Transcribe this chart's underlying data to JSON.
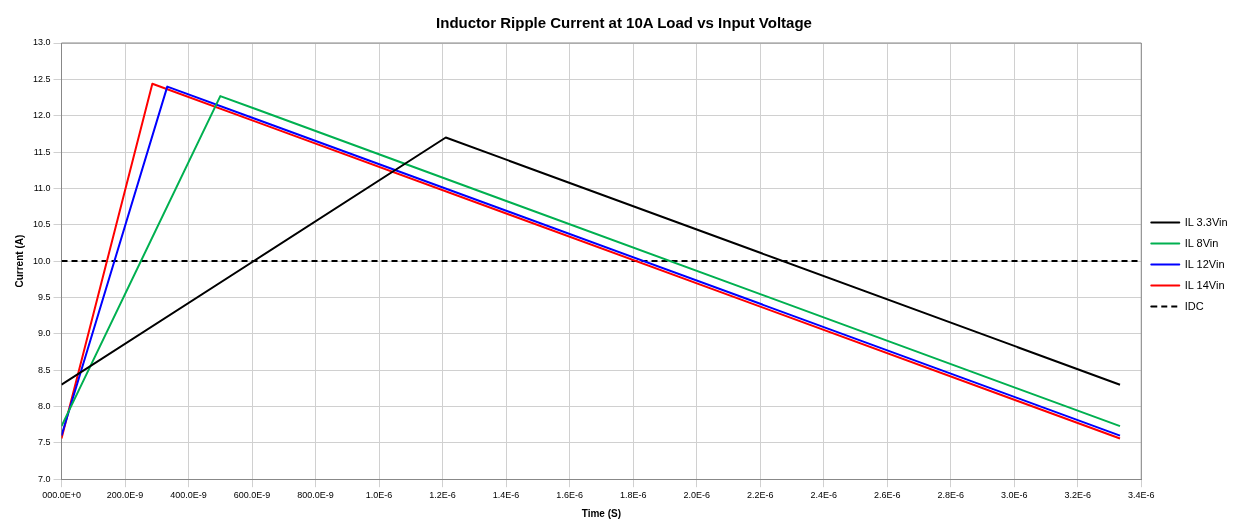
{
  "chart_data": {
    "type": "line",
    "title": "Inductor Ripple Current at 10A Load vs Input Voltage",
    "xlabel": "Time (S)",
    "ylabel": "Current (A)",
    "series": [
      {
        "name": "IL 3.3Vin",
        "color": "#000000",
        "x": [
          0,
          1.21e-06,
          3.333e-06
        ],
        "values": [
          8.3,
          11.7,
          8.3
        ]
      },
      {
        "name": "IL 8Vin",
        "color": "#00b050",
        "x": [
          0,
          5e-07,
          3.333e-06
        ],
        "values": [
          7.73,
          12.27,
          7.73
        ]
      },
      {
        "name": "IL 12Vin",
        "color": "#0000ff",
        "x": [
          0,
          3.33e-07,
          3.333e-06
        ],
        "values": [
          7.6,
          12.4,
          7.6
        ]
      },
      {
        "name": "IL 14Vin",
        "color": "#ff0000",
        "x": [
          0,
          2.86e-07,
          3.333e-06
        ],
        "values": [
          7.56,
          12.44,
          7.56
        ]
      },
      {
        "name": "IDC",
        "color": "#000000",
        "line_style": "dashed",
        "x": [
          0,
          3.4e-06
        ],
        "values": [
          10,
          10
        ]
      }
    ],
    "xlim": [
      0,
      3.4e-06
    ],
    "xticks": [
      {
        "value": 0,
        "label": "000.0E+0"
      },
      {
        "value": 2e-07,
        "label": "200.0E-9"
      },
      {
        "value": 4e-07,
        "label": "400.0E-9"
      },
      {
        "value": 6e-07,
        "label": "600.0E-9"
      },
      {
        "value": 8e-07,
        "label": "800.0E-9"
      },
      {
        "value": 1e-06,
        "label": "1.0E-6"
      },
      {
        "value": 1.2e-06,
        "label": "1.2E-6"
      },
      {
        "value": 1.4e-06,
        "label": "1.4E-6"
      },
      {
        "value": 1.6e-06,
        "label": "1.6E-6"
      },
      {
        "value": 1.8e-06,
        "label": "1.8E-6"
      },
      {
        "value": 2e-06,
        "label": "2.0E-6"
      },
      {
        "value": 2.2e-06,
        "label": "2.2E-6"
      },
      {
        "value": 2.4e-06,
        "label": "2.4E-6"
      },
      {
        "value": 2.6e-06,
        "label": "2.6E-6"
      },
      {
        "value": 2.8e-06,
        "label": "2.8E-6"
      },
      {
        "value": 3e-06,
        "label": "3.0E-6"
      },
      {
        "value": 3.2e-06,
        "label": "3.2E-6"
      },
      {
        "value": 3.4e-06,
        "label": "3.4E-6"
      }
    ],
    "ylim": [
      7,
      13
    ],
    "yticks": [
      {
        "value": 7,
        "label": "7.0"
      },
      {
        "value": 7.5,
        "label": "7.5"
      },
      {
        "value": 8,
        "label": "8.0"
      },
      {
        "value": 8.5,
        "label": "8.5"
      },
      {
        "value": 9,
        "label": "9.0"
      },
      {
        "value": 9.5,
        "label": "9.5"
      },
      {
        "value": 10,
        "label": "10.0"
      },
      {
        "value": 10.5,
        "label": "10.5"
      },
      {
        "value": 11,
        "label": "11.0"
      },
      {
        "value": 11.5,
        "label": "11.5"
      },
      {
        "value": 12,
        "label": "12.0"
      },
      {
        "value": 12.5,
        "label": "12.5"
      },
      {
        "value": 13,
        "label": "13.0"
      }
    ],
    "grid": true,
    "legend": "right",
    "marker": "none",
    "line_style": "solid"
  }
}
